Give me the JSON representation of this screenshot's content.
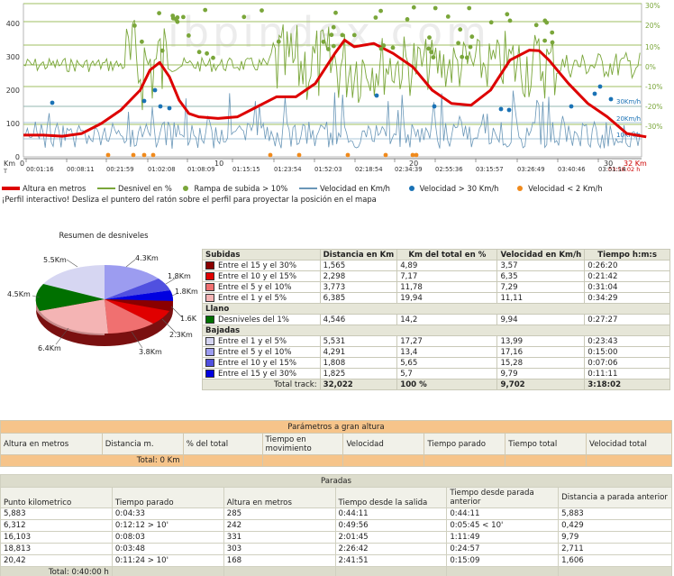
{
  "profile": {
    "watermark": "ibpindex.com",
    "y_left_ticks": [
      "400",
      "300",
      "200",
      "100",
      "0"
    ],
    "y_right_ticks": [
      "30%",
      "20%",
      "10%",
      "0%",
      "-10%",
      "-20%",
      "-30%"
    ],
    "speed_labels": [
      "30Km/h",
      "20Km/h",
      "10Km/h"
    ],
    "x_axis_unit": "Km",
    "x_km_ticks": [
      "0",
      "10",
      "20",
      "30"
    ],
    "total_km_label": "32 Km",
    "end_time_label": "03:58:02 h",
    "t_label": "T",
    "time_ticks": [
      "00:01:16",
      "00:08:11",
      "00:21:59",
      "01:02:08",
      "01:08:09",
      "01:15:15",
      "01:23:54",
      "01:52:03",
      "02:18:54",
      "02:34:39",
      "02:55:36",
      "03:15:57",
      "03:26:49",
      "03:40:46",
      "03:51:14"
    ],
    "colors": {
      "altitude": "#dd0000",
      "slope": "#7aa63a",
      "speed": "#6a97b8",
      "fast": "#1a72b5",
      "slow": "#f08a1c",
      "rampa": "#7aa63a"
    }
  },
  "legend": {
    "altitude": "Altura en metros",
    "slope": "Desnivel en %",
    "rampa": "Rampa de subida > 10%",
    "speed": "Velocidad en Km/h",
    "fast": "Velocidad > 30 Km/h",
    "slow": "Velocidad < 2 Km/h"
  },
  "interactive_note": "¡Perfil interactivo! Desliza el puntero del ratón sobre el perfil para proyectar la posición en el mapa",
  "pie": {
    "title": "Resumen de desniveles",
    "labels": [
      "5.5Km",
      "4.3Km",
      "1.8Km",
      "1.8Km",
      "1.6K",
      "2.3Km",
      "3.8Km",
      "6.4Km",
      "4.5Km"
    ]
  },
  "summary": {
    "headers": [
      "Subidas",
      "Distancia en Km",
      "Km del total en %",
      "Velocidad en Km/h",
      "Tiempo h:m:s"
    ],
    "subidas": [
      {
        "label": "Entre el 15 y el 30%",
        "color": "#8a0000",
        "km": "1,565",
        "pct": "4,89",
        "vel": "3,57",
        "time": "0:26:20"
      },
      {
        "label": "Entre el 10 y el 15%",
        "color": "#e00000",
        "km": "2,298",
        "pct": "7,17",
        "vel": "6,35",
        "time": "0:21:42"
      },
      {
        "label": "Entre el 5 y el 10%",
        "color": "#f07070",
        "km": "3,773",
        "pct": "11,78",
        "vel": "7,29",
        "time": "0:31:04"
      },
      {
        "label": "Entre el 1 y el 5%",
        "color": "#f4b4b4",
        "km": "6,385",
        "pct": "19,94",
        "vel": "11,11",
        "time": "0:34:29"
      }
    ],
    "llano_label": "Llano",
    "llano": {
      "label": "Desniveles del 1%",
      "color": "#007000",
      "km": "4,546",
      "pct": "14,2",
      "vel": "9,94",
      "time": "0:27:27"
    },
    "bajadas_label": "Bajadas",
    "bajadas": [
      {
        "label": "Entre el 1 y el 5%",
        "color": "#d4d4f0",
        "km": "5,531",
        "pct": "17,27",
        "vel": "13,99",
        "time": "0:23:43"
      },
      {
        "label": "Entre el 5 y el 10%",
        "color": "#9c9cf0",
        "km": "4,291",
        "pct": "13,4",
        "vel": "17,16",
        "time": "0:15:00"
      },
      {
        "label": "Entre el 10 y el 15%",
        "color": "#5050e0",
        "km": "1,808",
        "pct": "5,65",
        "vel": "15,28",
        "time": "0:07:06"
      },
      {
        "label": "Entre el 15 y el 30%",
        "color": "#0000e0",
        "km": "1,825",
        "pct": "5,7",
        "vel": "9,79",
        "time": "0:11:11"
      }
    ],
    "total": {
      "label": "Total track:",
      "km": "32,022",
      "pct": "100 %",
      "vel": "9,702",
      "time": "3:18:02"
    }
  },
  "altitude_params": {
    "title": "Parámetros a gran altura",
    "headers": [
      "Altura en metros",
      "Distancia m.",
      "% del total",
      "Tiempo en movimiento",
      "Velocidad",
      "Tiempo parado",
      "Tiempo total",
      "Velocidad total"
    ],
    "total_label": "Total: 0 Km"
  },
  "stops": {
    "title": "Paradas",
    "headers": [
      "Punto kilometrico",
      "Tiempo parado",
      "Altura en metros",
      "Tiempo desde la salida",
      "Tiempo desde parada anterior",
      "Distancia a parada anterior"
    ],
    "rows": [
      [
        "5,883",
        "0:04:33",
        "285",
        "0:44:11",
        "0:44:11",
        "5,883"
      ],
      [
        "6,312",
        "0:12:12  > 10'",
        "242",
        "0:49:56",
        "0:05:45  < 10'",
        "0,429"
      ],
      [
        "16,103",
        "0:08:03",
        "331",
        "2:01:45",
        "1:11:49",
        "9,79"
      ],
      [
        "18,813",
        "0:03:48",
        "303",
        "2:26:42",
        "0:24:57",
        "2,711"
      ],
      [
        "20,42",
        "0:11:24  > 10'",
        "168",
        "2:41:51",
        "0:15:09",
        "1,606"
      ]
    ],
    "total_label": "Total: 0:40:00 h"
  }
}
